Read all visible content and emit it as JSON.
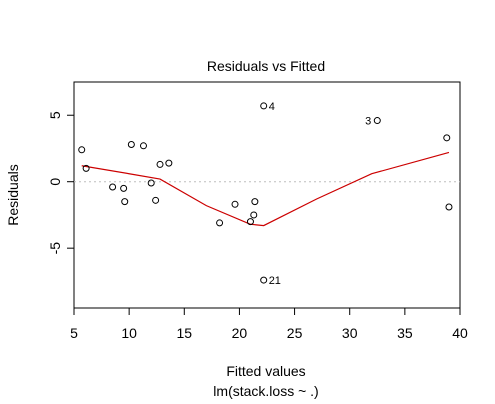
{
  "chart_data": {
    "type": "scatter",
    "title": "Residuals vs Fitted",
    "xlabel": "Fitted values",
    "sublabel": "lm(stack.loss ~ .)",
    "ylabel": "Residuals",
    "xlim": [
      5,
      40
    ],
    "ylim": [
      -9.5,
      7.5
    ],
    "xticks": [
      5,
      10,
      15,
      20,
      25,
      30,
      35,
      40
    ],
    "yticks": [
      -5,
      0,
      5
    ],
    "reference_line": 0,
    "colors": {
      "points": "#000000",
      "smooth": "#cc0000",
      "reference": "#bdbdbd"
    },
    "points": [
      {
        "x": 5.7,
        "y": 2.4
      },
      {
        "x": 6.1,
        "y": 1.0
      },
      {
        "x": 8.5,
        "y": -0.4
      },
      {
        "x": 9.5,
        "y": -0.5
      },
      {
        "x": 9.6,
        "y": -1.5
      },
      {
        "x": 10.2,
        "y": 2.8
      },
      {
        "x": 11.3,
        "y": 2.7
      },
      {
        "x": 12.0,
        "y": -0.1
      },
      {
        "x": 12.4,
        "y": -1.4
      },
      {
        "x": 12.8,
        "y": 1.3
      },
      {
        "x": 13.6,
        "y": 1.4
      },
      {
        "x": 18.2,
        "y": -3.1
      },
      {
        "x": 19.6,
        "y": -1.7
      },
      {
        "x": 21.0,
        "y": -3.0
      },
      {
        "x": 21.3,
        "y": -2.5
      },
      {
        "x": 21.4,
        "y": -1.5
      },
      {
        "x": 22.2,
        "y": 5.7
      },
      {
        "x": 22.2,
        "y": -7.4
      },
      {
        "x": 32.5,
        "y": 4.6
      },
      {
        "x": 38.8,
        "y": 3.3
      },
      {
        "x": 39.0,
        "y": -1.9
      }
    ],
    "point_labels": [
      {
        "text": "4",
        "x": 22.2,
        "y": 5.7,
        "side": "right"
      },
      {
        "text": "3",
        "x": 32.5,
        "y": 4.6,
        "side": "left"
      },
      {
        "text": "21",
        "x": 22.2,
        "y": -7.4,
        "side": "right"
      }
    ],
    "smooth": [
      {
        "x": 5.7,
        "y": 1.2
      },
      {
        "x": 10.0,
        "y": 0.6
      },
      {
        "x": 12.8,
        "y": 0.2
      },
      {
        "x": 17.0,
        "y": -1.8
      },
      {
        "x": 21.0,
        "y": -3.2
      },
      {
        "x": 22.2,
        "y": -3.3
      },
      {
        "x": 27.0,
        "y": -1.3
      },
      {
        "x": 32.0,
        "y": 0.6
      },
      {
        "x": 39.0,
        "y": 2.2
      }
    ]
  }
}
